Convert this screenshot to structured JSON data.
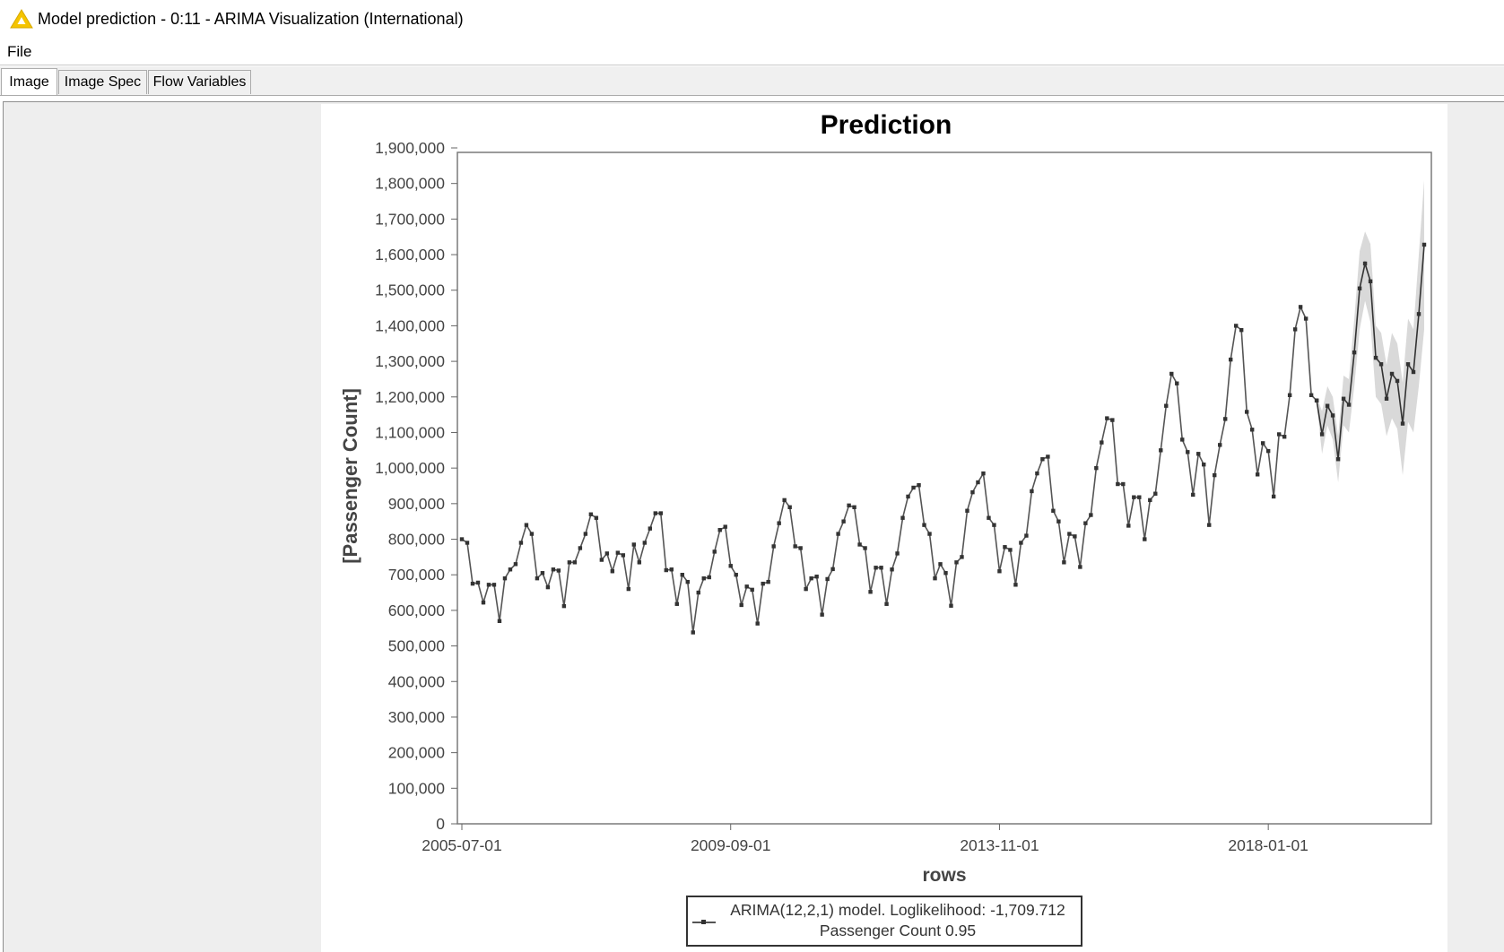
{
  "window": {
    "title": "Model prediction - 0:11 - ARIMA Visualization (International)",
    "icon": "warning-triangle-icon"
  },
  "menu": {
    "file_label": "File"
  },
  "tabs": [
    {
      "label": "Image",
      "active": true
    },
    {
      "label": "Image Spec",
      "active": false
    },
    {
      "label": "Flow Variables",
      "active": false
    }
  ],
  "chart_data": {
    "type": "line",
    "title": "Prediction",
    "xlabel": "rows",
    "ylabel": "[Passenger Count]",
    "ylim": [
      0,
      1900000
    ],
    "yticks": [
      "0",
      "100,000",
      "200,000",
      "300,000",
      "400,000",
      "500,000",
      "600,000",
      "700,000",
      "800,000",
      "900,000",
      "1,000,000",
      "1,100,000",
      "1,200,000",
      "1,300,000",
      "1,400,000",
      "1,500,000",
      "1,600,000",
      "1,700,000",
      "1,800,000",
      "1,900,000"
    ],
    "xticks": [
      "2005-07-01",
      "2009-09-01",
      "2013-11-01",
      "2018-01-01"
    ],
    "xtick_index": [
      0,
      50,
      100,
      150
    ],
    "grid": false,
    "legend_position": "bottom",
    "legend": {
      "series_label": "ARIMA(12,2,1) model. Loglikelihood: -1,709.712",
      "band_label": "Passenger Count 0.95"
    },
    "series": [
      {
        "values": [
          800000,
          790000,
          675000,
          678000,
          622000,
          672000,
          672000,
          570000,
          690000,
          715000,
          730000,
          790000,
          840000,
          815000,
          690000,
          705000,
          665000,
          715000,
          712000,
          612000,
          735000,
          735000,
          775000,
          815000,
          870000,
          860000,
          742000,
          760000,
          710000,
          762000,
          755000,
          660000,
          785000,
          735000,
          790000,
          830000,
          873000,
          873000,
          713000,
          715000,
          618000,
          700000,
          680000,
          538000,
          650000,
          690000,
          693000,
          765000,
          826000,
          835000,
          725000,
          700000,
          615000,
          667000,
          658000,
          563000,
          675000,
          680000,
          780000,
          845000,
          910000,
          890000,
          780000,
          775000,
          660000,
          690000,
          695000,
          588000,
          688000,
          716000,
          815000,
          850000,
          895000,
          890000,
          785000,
          775000,
          652000,
          720000,
          720000,
          618000,
          715000,
          760000,
          860000,
          920000,
          945000,
          952000,
          840000,
          815000,
          690000,
          730000,
          705000,
          613000,
          735000,
          750000,
          880000,
          932000,
          960000,
          985000,
          860000,
          840000,
          710000,
          778000,
          770000,
          672000,
          790000,
          810000,
          935000,
          985000,
          1025000,
          1032000,
          880000,
          850000,
          735000,
          815000,
          808000,
          722000,
          845000,
          868000,
          1000000,
          1072000,
          1140000,
          1135000,
          955000,
          955000,
          838000,
          918000,
          918000,
          800000,
          910000,
          928000,
          1050000,
          1175000,
          1265000,
          1238000,
          1080000,
          1045000,
          925000,
          1040000,
          1010000,
          840000,
          980000,
          1065000,
          1138000,
          1305000,
          1400000,
          1388000,
          1158000,
          1108000,
          982000,
          1070000,
          1048000,
          920000,
          1095000,
          1088000,
          1205000,
          1390000,
          1453000,
          1420000,
          1205000,
          1190000
        ],
        "color": "#555555"
      },
      {
        "values": [
          1190000,
          1095000,
          1175000,
          1148000,
          1025000,
          1195000,
          1178000,
          1325000,
          1505000,
          1575000,
          1525000,
          1310000,
          1292000,
          1195000,
          1265000,
          1245000,
          1125000,
          1292000,
          1270000,
          1433000,
          1628000
        ],
        "color": "#333333"
      }
    ],
    "confidence_band": {
      "upper": [
        1200000,
        1160000,
        1230000,
        1200000,
        1090000,
        1260000,
        1250000,
        1420000,
        1610000,
        1665000,
        1630000,
        1400000,
        1380000,
        1290000,
        1380000,
        1350000,
        1240000,
        1420000,
        1390000,
        1600000,
        1810000
      ],
      "lower": [
        1180000,
        1040000,
        1120000,
        1080000,
        960000,
        1120000,
        1100000,
        1230000,
        1390000,
        1470000,
        1410000,
        1200000,
        1180000,
        1090000,
        1140000,
        1110000,
        980000,
        1130000,
        1100000,
        1230000,
        1390000
      ],
      "color": "#d9d9d9"
    }
  }
}
